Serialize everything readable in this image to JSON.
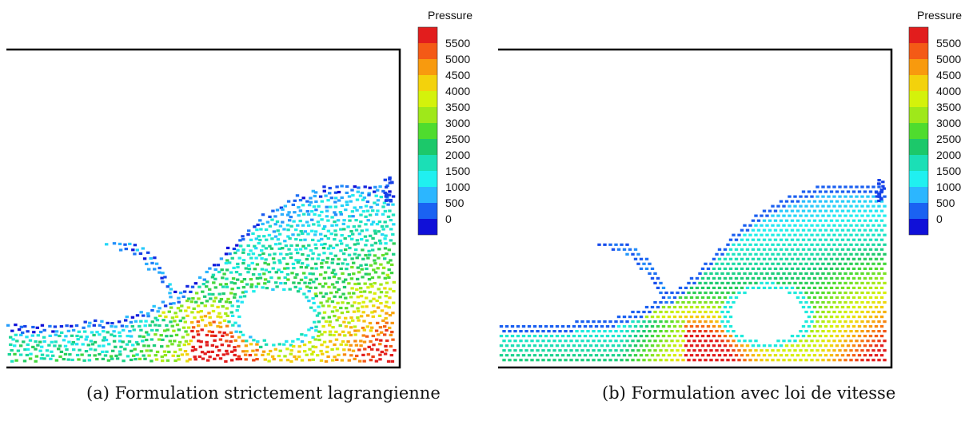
{
  "panels": [
    {
      "caption": "(a) Formulation strictement lagrangienne",
      "colorbar_title": "Pressure",
      "mode": "lagrangian"
    },
    {
      "caption": "(b) Formulation avec loi de vitesse",
      "colorbar_title": "Pressure",
      "mode": "velocity"
    }
  ],
  "colorbar": {
    "levels": [
      "5500",
      "5000",
      "4500",
      "4000",
      "3500",
      "3000",
      "2500",
      "2000",
      "1500",
      "1000",
      "500",
      "0"
    ],
    "colors": [
      "#e21d1d",
      "#f45a16",
      "#f89a0e",
      "#f3d20c",
      "#d4f20b",
      "#9fe81a",
      "#4fdc2e",
      "#1cc86a",
      "#1bdfb6",
      "#20f0f0",
      "#2cb6ff",
      "#1a62f2",
      "#1010d8"
    ]
  }
}
